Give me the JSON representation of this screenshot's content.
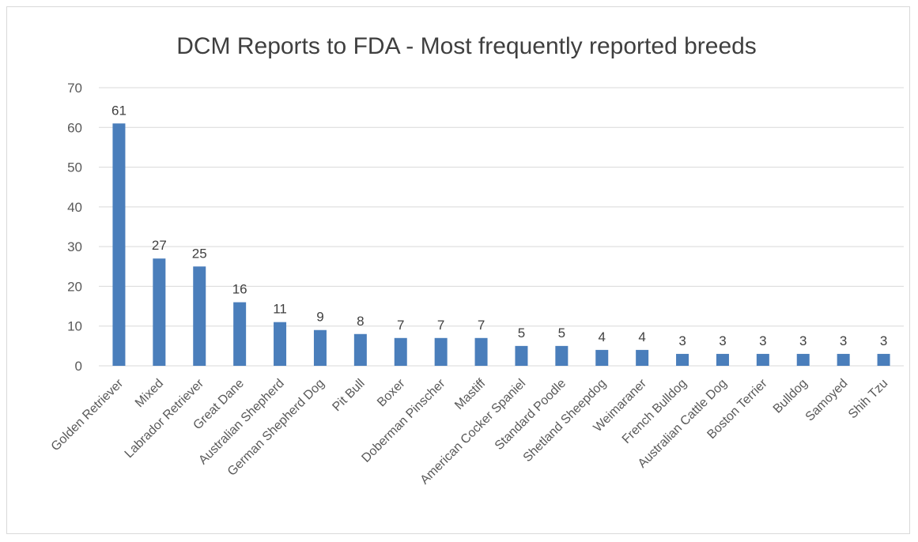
{
  "chart_data": {
    "type": "bar",
    "title": "DCM Reports to FDA - Most frequently reported breeds",
    "xlabel": "",
    "ylabel": "",
    "ylim": [
      0,
      70
    ],
    "yticks": [
      0,
      10,
      20,
      30,
      40,
      50,
      60,
      70
    ],
    "grid": true,
    "legend": "none",
    "bar_color": "#4a7ebb",
    "categories": [
      "Golden Retriever",
      "Mixed",
      "Labrador Retriever",
      "Great Dane",
      "Australian Shepherd",
      "German Shepherd Dog",
      "Pit Bull",
      "Boxer",
      "Doberman Pinscher",
      "Mastiff",
      "American Cocker Spaniel",
      "Standard Poodle",
      "Shetland Sheepdog",
      "Weimaraner",
      "French Bulldog",
      "Australian Cattle Dog",
      "Boston Terrier",
      "Bulldog",
      "Samoyed",
      "Shih Tzu"
    ],
    "values": [
      61,
      27,
      25,
      16,
      11,
      9,
      8,
      7,
      7,
      7,
      5,
      5,
      4,
      4,
      3,
      3,
      3,
      3,
      3,
      3
    ]
  }
}
